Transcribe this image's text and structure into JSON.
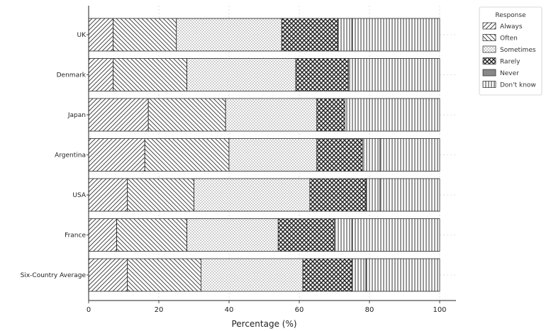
{
  "chart_data": {
    "type": "bar",
    "orientation": "horizontal",
    "stacked": true,
    "categories": [
      "UK",
      "Denmark",
      "Japan",
      "Argentina",
      "USA",
      "France",
      "Six-Country Average"
    ],
    "series": [
      {
        "name": "Always",
        "pattern": "diagonal-up",
        "values": [
          7,
          7,
          17,
          16,
          11,
          8,
          11
        ]
      },
      {
        "name": "Often",
        "pattern": "diagonal-down",
        "values": [
          18,
          21,
          22,
          24,
          19,
          20,
          21
        ]
      },
      {
        "name": "Sometimes",
        "pattern": "dots",
        "values": [
          30,
          31,
          26,
          25,
          33,
          26,
          29
        ]
      },
      {
        "name": "Rarely",
        "pattern": "crosshatch",
        "values": [
          16,
          15,
          8,
          13,
          16,
          16,
          14
        ]
      },
      {
        "name": "Never",
        "pattern": "solid-gray",
        "values": [
          0,
          0,
          0,
          0,
          0,
          0,
          0
        ]
      },
      {
        "name": "Don't know",
        "pattern": "vertical",
        "values": [
          4,
          2,
          7,
          5,
          4,
          5,
          4
        ]
      }
    ],
    "remainder_pattern": "vertical",
    "xlabel": "Percentage (%)",
    "ylabel": "",
    "xlim": [
      0,
      100
    ],
    "xticks": [
      0,
      20,
      40,
      60,
      80,
      100
    ],
    "grid": true,
    "legend": {
      "title": "Response",
      "placement": "top-right, outside plot"
    },
    "colors": {
      "bar_fill": "#ffffff",
      "pattern": "#333333",
      "never": "#888888",
      "grid": "#cccccc"
    }
  }
}
